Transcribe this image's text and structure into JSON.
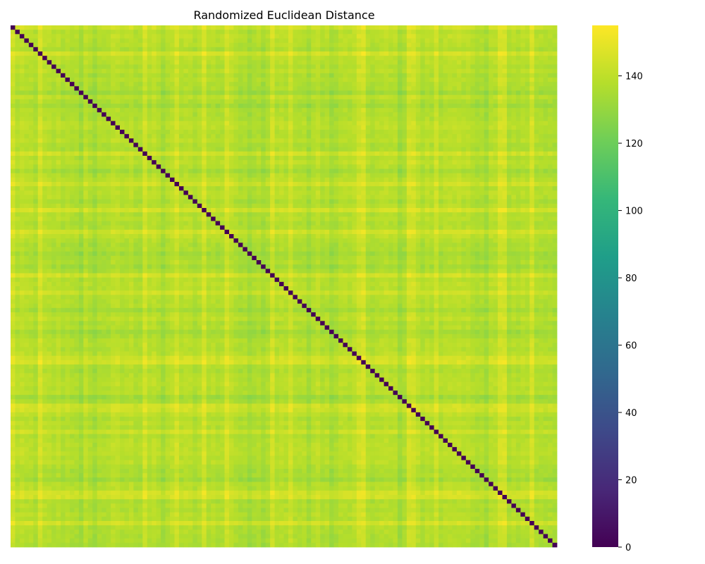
{
  "chart_data": {
    "type": "heatmap",
    "title": "Randomized Euclidean Distance",
    "colormap": "viridis",
    "matrix_size": 120,
    "diagonal_value": 0,
    "typical_off_diagonal_range": [
      120,
      155
    ],
    "color_range": [
      0,
      155
    ],
    "colorbar": {
      "ticks": [
        0,
        20,
        40,
        60,
        80,
        100,
        120,
        140
      ]
    },
    "x_tick_labels_visible": false,
    "y_tick_labels_visible": false,
    "high_rows_cols": [
      0,
      6,
      29,
      36,
      42,
      47,
      57,
      61,
      76,
      77,
      87,
      88,
      93,
      107,
      108,
      114
    ],
    "low_rows_cols": [
      15,
      18,
      33,
      52,
      55,
      65,
      70,
      85,
      104
    ],
    "colors": {
      "viridis": [
        "#440154",
        "#482878",
        "#3e4989",
        "#31688e",
        "#26828e",
        "#1f9e89",
        "#35b779",
        "#6ece58",
        "#b5de2b",
        "#fde725"
      ]
    }
  }
}
